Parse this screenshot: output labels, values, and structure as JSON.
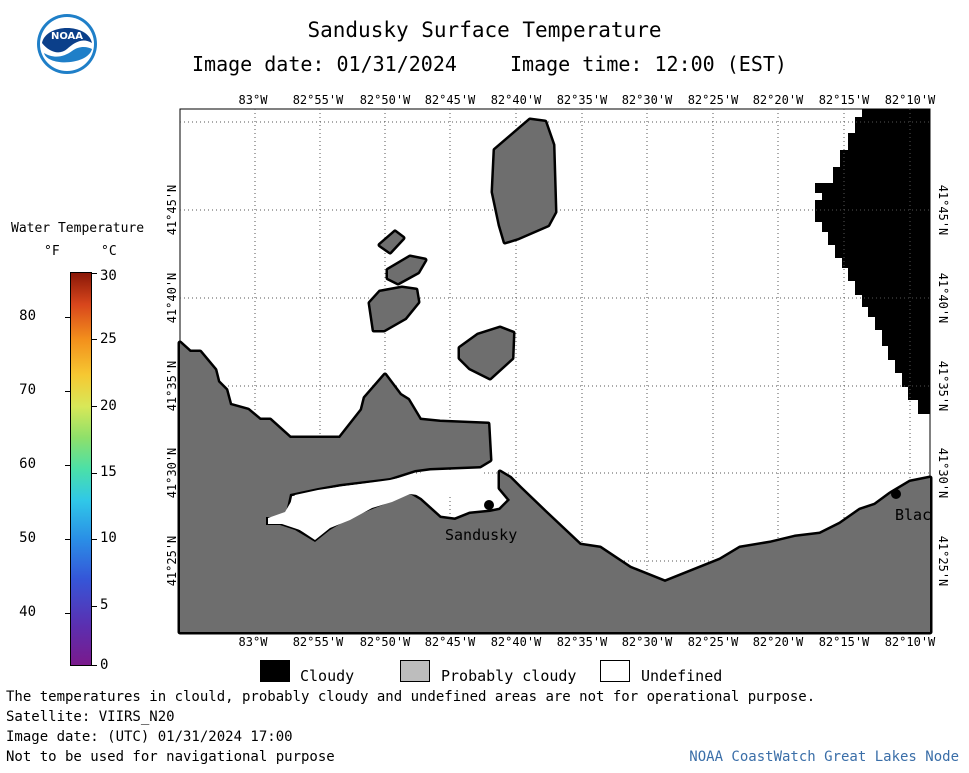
{
  "header": {
    "title": "Sandusky Surface Temperature",
    "image_date": "Image date: 01/31/2024",
    "image_time": "Image time: 12:00 (EST)",
    "logo_text": "NOAA"
  },
  "map": {
    "lon_labels": [
      "83°W",
      "82°55'W",
      "82°50'W",
      "82°45'W",
      "82°40'W",
      "82°35'W",
      "82°30'W",
      "82°25'W",
      "82°20'W",
      "82°15'W",
      "82°10'W"
    ],
    "lat_labels": [
      "41°45'N",
      "41°40'N",
      "41°35'N",
      "41°30'N",
      "41°25'N"
    ],
    "cities": [
      {
        "name": "Sandusky"
      },
      {
        "name": "Blac"
      }
    ],
    "colors": {
      "land_cloud": "#6e6e6e",
      "cloudy": "#000000",
      "undefined": "#ffffff",
      "grid": "#555555"
    }
  },
  "legend": {
    "title": "Water Temperature",
    "unit_f": "°F",
    "unit_c": "°C",
    "f_ticks": [
      "80",
      "70",
      "60",
      "50",
      "40"
    ],
    "c_ticks": [
      "30",
      "25",
      "20",
      "15",
      "10",
      "5",
      "0"
    ],
    "categories": [
      {
        "label": "Cloudy",
        "color": "#000000"
      },
      {
        "label": "Probably cloudy",
        "color": "#bdbdbd"
      },
      {
        "label": "Undefined",
        "color": "#ffffff"
      }
    ]
  },
  "notes": {
    "disclaimer": "The temperatures in clould, probably cloudy and undefined areas are not for operational purpose.",
    "satellite": "Satellite: VIIRS_N20",
    "utc_date": "Image date: (UTC) 01/31/2024  17:00",
    "nav": "Not to be used for navigational purpose",
    "credit": "NOAA CoastWatch Great Lakes Node"
  }
}
